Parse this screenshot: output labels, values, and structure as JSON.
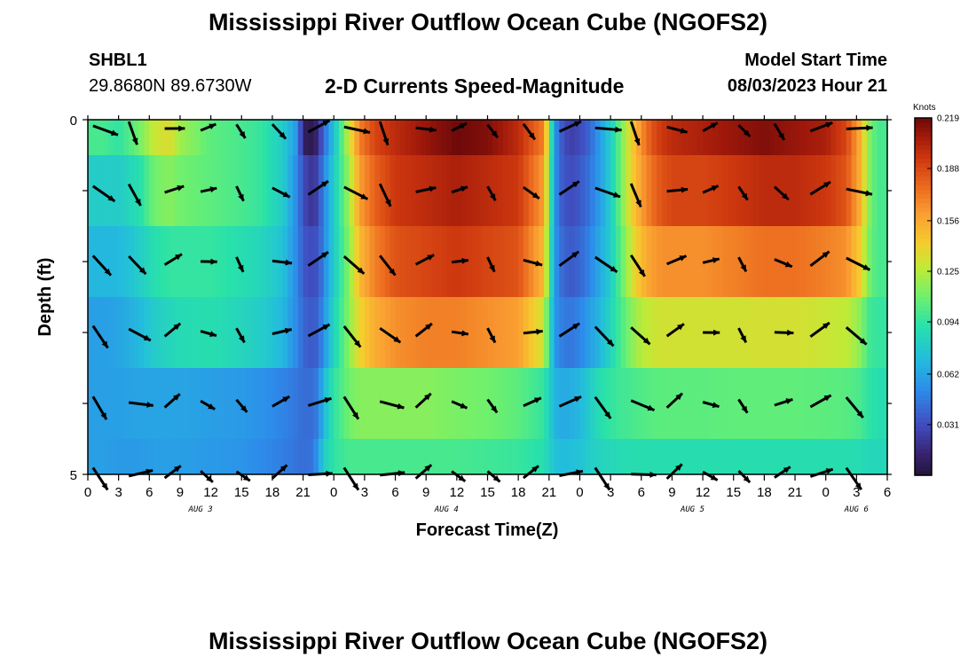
{
  "page": {
    "title": "Mississippi River Outflow Ocean Cube (NGOFS2)",
    "station_id": "SHBL1",
    "station_coords": "29.8680N  89.6730W",
    "subtitle": "2-D Currents Speed-Magnitude",
    "model_start_label": "Model Start Time",
    "model_start_value": "08/03/2023 Hour 21",
    "second_title": "Mississippi River Outflow Ocean Cube (NGOFS2)"
  },
  "chart_data": {
    "type": "heatmap",
    "xlabel": "Forecast Time(Z)",
    "ylabel": "Depth (ft)",
    "x_tick_labels": [
      "0",
      "3",
      "6",
      "9",
      "12",
      "15",
      "18",
      "21",
      "0",
      "3",
      "6",
      "9",
      "12",
      "15",
      "18",
      "21",
      "0",
      "3",
      "6",
      "9",
      "12",
      "15",
      "18",
      "21",
      "0",
      "3",
      "6"
    ],
    "x_range_hours": [
      0,
      78
    ],
    "day_labels": [
      {
        "text": "AUG 3",
        "hour": 11
      },
      {
        "text": "AUG 4",
        "hour": 35
      },
      {
        "text": "AUG 5",
        "hour": 59
      },
      {
        "text": "AUG 6",
        "hour": 75
      }
    ],
    "y_tick_labels": [
      "0",
      "5"
    ],
    "y_range": [
      0,
      5
    ],
    "depth_layers": 5,
    "colorbar": {
      "unit": "Knots",
      "min": 0.0,
      "max": 0.219,
      "tick_labels": [
        "0.219",
        "0.188",
        "0.156",
        "0.125",
        "0.094",
        "0.062",
        "0.031"
      ],
      "tick_values": [
        0.219,
        0.188,
        0.156,
        0.125,
        0.094,
        0.062,
        0.031
      ]
    },
    "speed_profile": {
      "hours": [
        0,
        1.5,
        3,
        5,
        6.5,
        8,
        9,
        12,
        15,
        17,
        19,
        20.5,
        21,
        22,
        22.5,
        23,
        24,
        25.5,
        26.5,
        28,
        30,
        33,
        36,
        39,
        42,
        44.5,
        45.5,
        46,
        47,
        48,
        49,
        50,
        51,
        52,
        53,
        54,
        55,
        56,
        57,
        60,
        63,
        66,
        69,
        72,
        74,
        75.5,
        76,
        77,
        78
      ],
      "rows": [
        [
          0.1,
          0.1,
          0.094,
          0.11,
          0.13,
          0.135,
          0.12,
          0.105,
          0.1,
          0.095,
          0.08,
          0.055,
          0.01,
          0.005,
          0.02,
          0.04,
          0.075,
          0.13,
          0.17,
          0.19,
          0.2,
          0.21,
          0.219,
          0.215,
          0.2,
          0.17,
          0.06,
          0.04,
          0.025,
          0.03,
          0.04,
          0.06,
          0.08,
          0.11,
          0.14,
          0.165,
          0.185,
          0.195,
          0.2,
          0.205,
          0.21,
          0.215,
          0.21,
          0.205,
          0.19,
          0.15,
          0.12,
          0.1,
          0.1
        ],
        [
          0.08,
          0.08,
          0.08,
          0.09,
          0.11,
          0.115,
          0.11,
          0.105,
          0.1,
          0.095,
          0.08,
          0.05,
          0.03,
          0.02,
          0.03,
          0.05,
          0.08,
          0.12,
          0.16,
          0.18,
          0.195,
          0.2,
          0.205,
          0.2,
          0.195,
          0.16,
          0.06,
          0.04,
          0.03,
          0.035,
          0.045,
          0.06,
          0.08,
          0.11,
          0.14,
          0.16,
          0.175,
          0.185,
          0.19,
          0.19,
          0.195,
          0.2,
          0.2,
          0.195,
          0.185,
          0.15,
          0.12,
          0.1,
          0.1
        ],
        [
          0.07,
          0.07,
          0.07,
          0.08,
          0.09,
          0.095,
          0.095,
          0.095,
          0.09,
          0.085,
          0.075,
          0.05,
          0.035,
          0.03,
          0.035,
          0.05,
          0.08,
          0.115,
          0.15,
          0.17,
          0.185,
          0.19,
          0.195,
          0.19,
          0.185,
          0.15,
          0.06,
          0.045,
          0.035,
          0.04,
          0.05,
          0.065,
          0.08,
          0.105,
          0.13,
          0.15,
          0.16,
          0.165,
          0.165,
          0.165,
          0.17,
          0.175,
          0.175,
          0.17,
          0.165,
          0.14,
          0.115,
          0.1,
          0.1
        ],
        [
          0.06,
          0.06,
          0.062,
          0.07,
          0.08,
          0.085,
          0.088,
          0.09,
          0.085,
          0.08,
          0.07,
          0.05,
          0.04,
          0.035,
          0.04,
          0.055,
          0.085,
          0.115,
          0.14,
          0.155,
          0.165,
          0.17,
          0.17,
          0.165,
          0.16,
          0.13,
          0.06,
          0.05,
          0.045,
          0.05,
          0.06,
          0.07,
          0.085,
          0.1,
          0.115,
          0.125,
          0.13,
          0.132,
          0.132,
          0.132,
          0.132,
          0.133,
          0.133,
          0.13,
          0.128,
          0.115,
          0.1,
          0.095,
          0.095
        ],
        [
          0.06,
          0.06,
          0.06,
          0.062,
          0.062,
          0.062,
          0.062,
          0.06,
          0.058,
          0.055,
          0.05,
          0.045,
          0.042,
          0.042,
          0.05,
          0.07,
          0.094,
          0.11,
          0.115,
          0.115,
          0.115,
          0.115,
          0.112,
          0.11,
          0.105,
          0.095,
          0.07,
          0.065,
          0.065,
          0.07,
          0.08,
          0.09,
          0.095,
          0.098,
          0.1,
          0.102,
          0.104,
          0.105,
          0.105,
          0.105,
          0.106,
          0.106,
          0.106,
          0.105,
          0.104,
          0.1,
          0.094,
          0.09,
          0.09
        ],
        [
          0.06,
          0.06,
          0.058,
          0.058,
          0.06,
          0.06,
          0.06,
          0.058,
          0.056,
          0.052,
          0.048,
          0.044,
          0.042,
          0.045,
          0.06,
          0.08,
          0.094,
          0.1,
          0.1,
          0.1,
          0.1,
          0.1,
          0.1,
          0.098,
          0.096,
          0.09,
          0.075,
          0.072,
          0.072,
          0.075,
          0.08,
          0.084,
          0.086,
          0.088,
          0.09,
          0.09,
          0.09,
          0.09,
          0.09,
          0.09,
          0.09,
          0.09,
          0.09,
          0.09,
          0.09,
          0.088,
          0.086,
          0.086,
          0.086
        ]
      ],
      "note_rows": "rows correspond to depth levels at ticks 0, 1, 2, 3, 4, 5 ft"
    }
  }
}
